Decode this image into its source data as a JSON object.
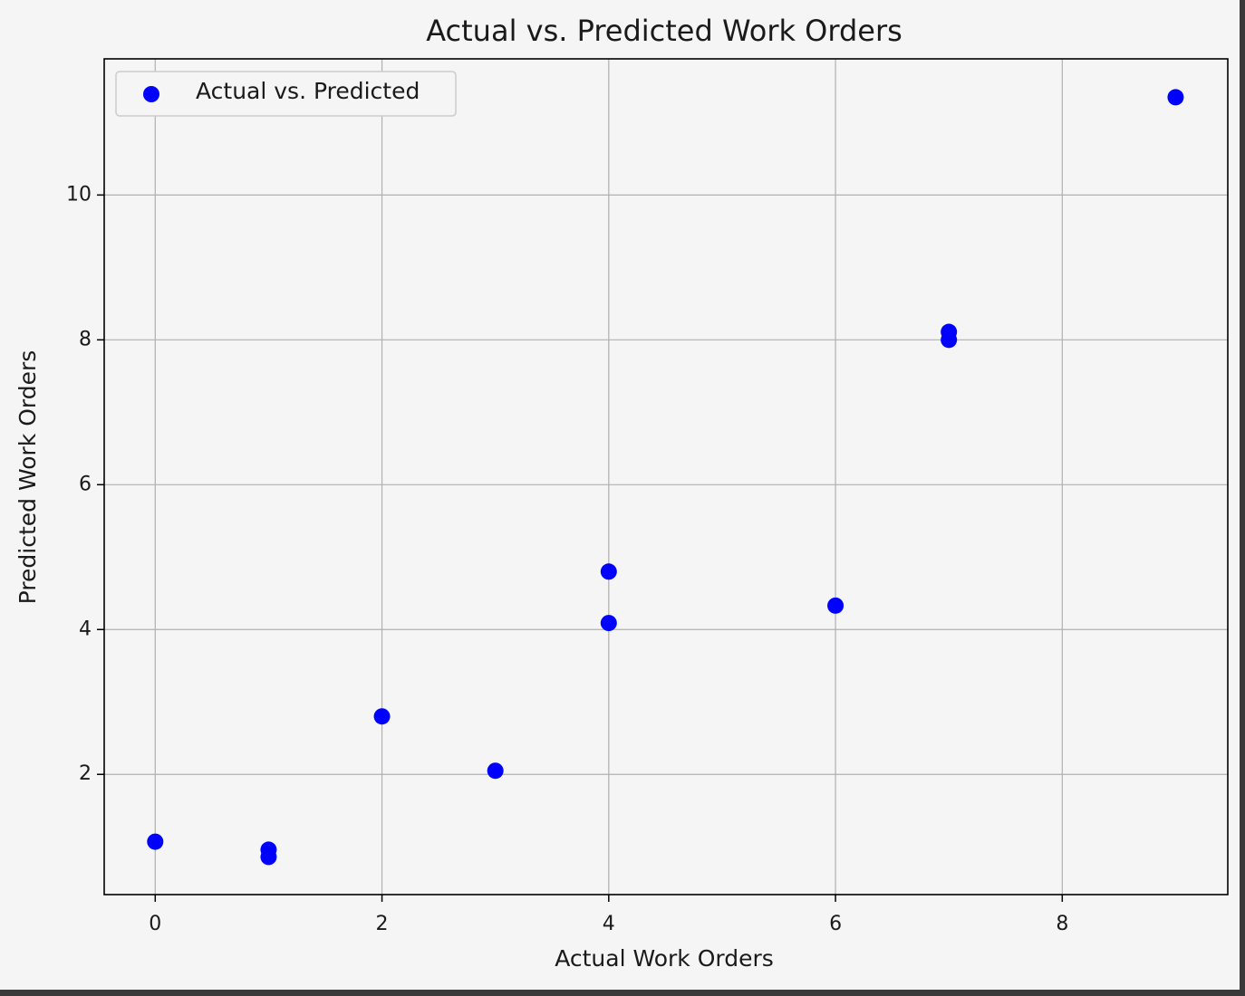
{
  "chart_data": {
    "type": "scatter",
    "title": "Actual vs. Predicted Work Orders",
    "xlabel": "Actual Work Orders",
    "ylabel": "Predicted Work Orders",
    "x": [
      0,
      1,
      1,
      2,
      3,
      4,
      4,
      6,
      7,
      7,
      9
    ],
    "series": [
      {
        "name": "Actual vs. Predicted",
        "color": "#0000ff",
        "values": [
          1.07,
          0.96,
          0.86,
          2.8,
          2.05,
          4.8,
          4.09,
          4.33,
          8.11,
          8.0,
          11.35
        ]
      }
    ],
    "xlim": [
      -0.45,
      9.46
    ],
    "ylim": [
      0.34,
      11.88
    ],
    "xticks": [
      0,
      2,
      4,
      6,
      8
    ],
    "yticks": [
      2,
      4,
      6,
      8,
      10
    ],
    "grid": true,
    "legend": "upper left"
  }
}
